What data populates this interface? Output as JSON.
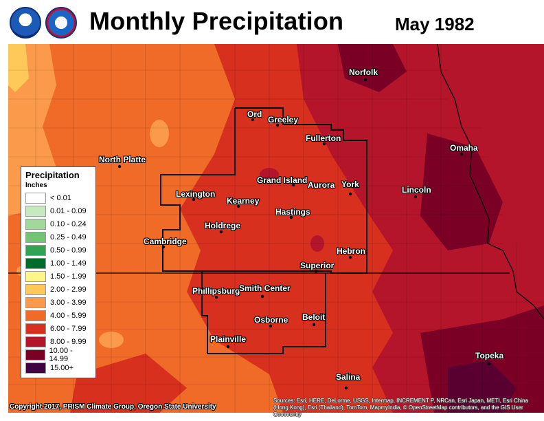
{
  "header": {
    "title": "Monthly Precipitation",
    "date": "May 1982",
    "logos": [
      "noaa-logo",
      "nws-logo"
    ]
  },
  "legend": {
    "title": "Precipitation",
    "units": "Inches",
    "items": [
      {
        "label": "< 0.01",
        "color": "#ffffff"
      },
      {
        "label": "0.01 - 0.09",
        "color": "#c7e9c0"
      },
      {
        "label": "0.10 - 0.24",
        "color": "#a1d99b"
      },
      {
        "label": "0.25 - 0.49",
        "color": "#74c476"
      },
      {
        "label": "0.50 - 0.99",
        "color": "#31a354"
      },
      {
        "label": "1.00 - 1.49",
        "color": "#006d2c"
      },
      {
        "label": "1.50 - 1.99",
        "color": "#fff58a"
      },
      {
        "label": "2.00 - 2.99",
        "color": "#ffc95a"
      },
      {
        "label": "3.00 - 3.99",
        "color": "#fb9a4a"
      },
      {
        "label": "4.00 - 5.99",
        "color": "#f06a28"
      },
      {
        "label": "6.00 - 7.99",
        "color": "#d7301f"
      },
      {
        "label": "8.00 - 9.99",
        "color": "#b5152b"
      },
      {
        "label": "10.00 - 14.99",
        "color": "#7a0026"
      },
      {
        "label": "15.00+",
        "color": "#3d0040"
      }
    ]
  },
  "cities": [
    {
      "name": "Norfolk"
    },
    {
      "name": "Ord"
    },
    {
      "name": "Greeley"
    },
    {
      "name": "Fullerton"
    },
    {
      "name": "Omaha"
    },
    {
      "name": "North Platte"
    },
    {
      "name": "Grand Island"
    },
    {
      "name": "Aurora"
    },
    {
      "name": "York"
    },
    {
      "name": "Lincoln"
    },
    {
      "name": "Lexington"
    },
    {
      "name": "Kearney"
    },
    {
      "name": "Hastings"
    },
    {
      "name": "Holdrege"
    },
    {
      "name": "Cambridge"
    },
    {
      "name": "Hebron"
    },
    {
      "name": "Superior"
    },
    {
      "name": "Phillipsburg"
    },
    {
      "name": "Smith Center"
    },
    {
      "name": "Osborne"
    },
    {
      "name": "Beloit"
    },
    {
      "name": "Plainville"
    },
    {
      "name": "Salina"
    },
    {
      "name": "Topeka"
    }
  ],
  "footer": {
    "copyright": "Copyright 2017, PRISM Climate Group, Oregon State University",
    "credits": "Sources: Esri, HERE, DeLorme, USGS, Intermap, INCREMENT P, NRCan, Esri Japan, METI, Esri China (Hong Kong), Esri (Thailand), TomTom, MapmyIndia, © OpenStreetMap contributors, and the GIS User Community"
  }
}
